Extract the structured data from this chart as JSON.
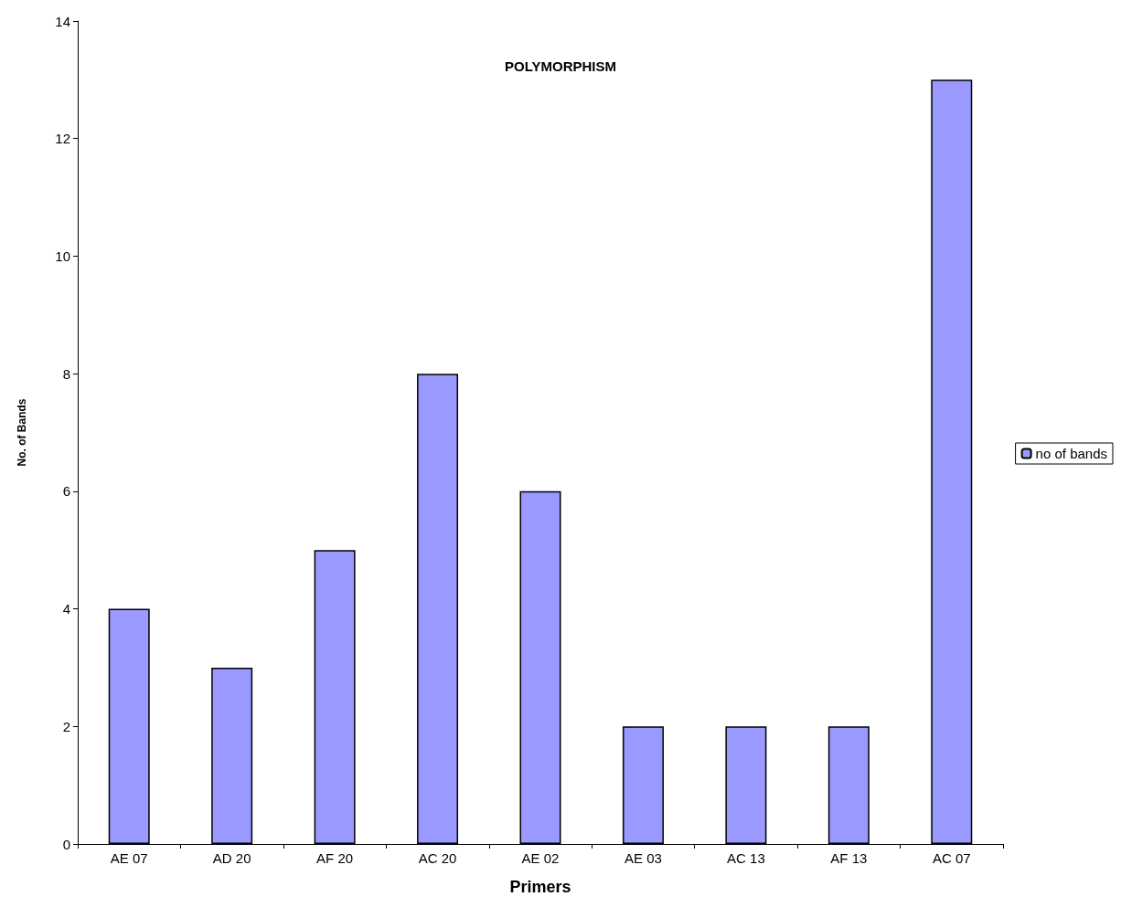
{
  "chart_data": {
    "type": "bar",
    "title": "POLYMORPHISM",
    "xlabel": "Primers",
    "ylabel": "No. of Bands",
    "categories": [
      "AE 07",
      "AD 20",
      "AF 20",
      "AC 20",
      "AE 02",
      "AE 03",
      "AC 13",
      "AF 13",
      "AC 07"
    ],
    "series": [
      {
        "name": "no of bands",
        "color": "#9999ff",
        "values": [
          4,
          3,
          5,
          8,
          6,
          2,
          2,
          2,
          13
        ]
      }
    ],
    "ylim": [
      0,
      14
    ],
    "yticks": [
      0,
      2,
      4,
      6,
      8,
      10,
      12,
      14
    ],
    "grid": false,
    "legend": "right"
  }
}
